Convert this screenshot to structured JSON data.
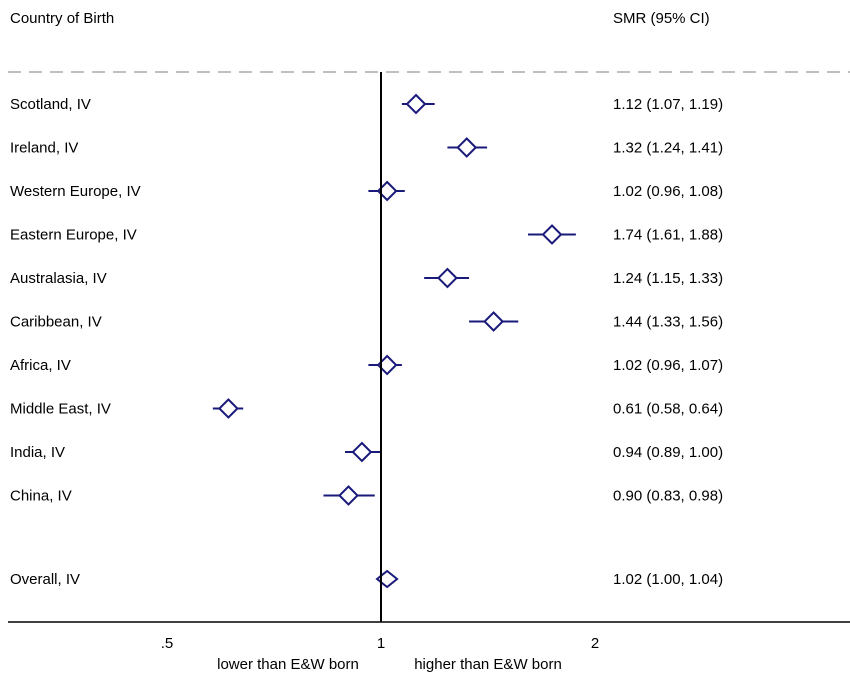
{
  "header": {
    "left_label": "Country of Birth",
    "right_label": "SMR (95% CI)"
  },
  "chart_data": {
    "type": "forest",
    "x_scale": "log",
    "reference_line": 1,
    "xlim": [
      0.4,
      3.5
    ],
    "x_ticks": [
      0.5,
      1,
      2
    ],
    "x_tick_labels": [
      ".5",
      "1",
      "2"
    ],
    "axis_notes": [
      "lower than E&W born",
      "higher than E&W born"
    ],
    "grid": false,
    "colors": {
      "marker": "#1a1a7a",
      "reference": "#000000",
      "divider": "#bfbfbf"
    },
    "rows": [
      {
        "label": "Scotland, IV",
        "est": 1.12,
        "lo": 1.07,
        "hi": 1.19,
        "text": "1.12 (1.07, 1.19)"
      },
      {
        "label": "Ireland, IV",
        "est": 1.32,
        "lo": 1.24,
        "hi": 1.41,
        "text": "1.32 (1.24, 1.41)"
      },
      {
        "label": "Western Europe, IV",
        "est": 1.02,
        "lo": 0.96,
        "hi": 1.08,
        "text": "1.02 (0.96, 1.08)"
      },
      {
        "label": "Eastern Europe, IV",
        "est": 1.74,
        "lo": 1.61,
        "hi": 1.88,
        "text": "1.74 (1.61, 1.88)"
      },
      {
        "label": "Australasia, IV",
        "est": 1.24,
        "lo": 1.15,
        "hi": 1.33,
        "text": "1.24 (1.15, 1.33)"
      },
      {
        "label": "Caribbean, IV",
        "est": 1.44,
        "lo": 1.33,
        "hi": 1.56,
        "text": "1.44 (1.33, 1.56)"
      },
      {
        "label": "Africa, IV",
        "est": 1.02,
        "lo": 0.96,
        "hi": 1.07,
        "text": "1.02 (0.96, 1.07)"
      },
      {
        "label": "Middle East, IV",
        "est": 0.61,
        "lo": 0.58,
        "hi": 0.64,
        "text": "0.61 (0.58, 0.64)"
      },
      {
        "label": "India, IV",
        "est": 0.94,
        "lo": 0.89,
        "hi": 1.0,
        "text": "0.94 (0.89, 1.00)"
      },
      {
        "label": "China, IV",
        "est": 0.9,
        "lo": 0.83,
        "hi": 0.98,
        "text": "0.90 (0.83, 0.98)"
      }
    ],
    "overall": {
      "label": "Overall, IV",
      "est": 1.02,
      "lo": 1.0,
      "hi": 1.04,
      "text": "1.02 (1.00, 1.04)"
    }
  }
}
